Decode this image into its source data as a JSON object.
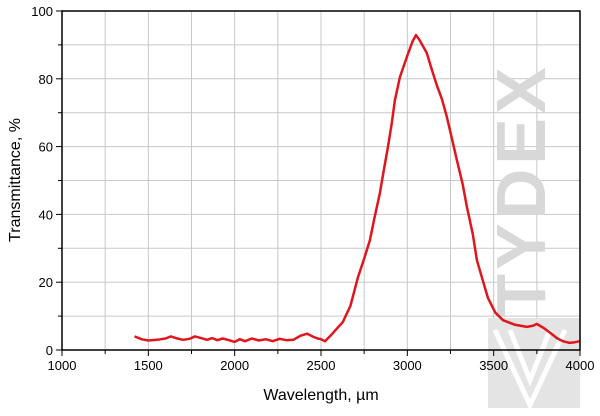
{
  "chart_data": {
    "type": "line",
    "title": "",
    "xlabel": "Wavelength, µm",
    "ylabel": "Transmittance, %",
    "xlim": [
      1000,
      4000
    ],
    "ylim": [
      0,
      100
    ],
    "xticks": [
      1000,
      1500,
      2000,
      2500,
      3000,
      3500,
      4000
    ],
    "yticks": [
      0,
      20,
      40,
      60,
      80,
      100
    ],
    "grid": true,
    "watermark": "TYDEX",
    "line_color": "#e0161e",
    "series": [
      {
        "x": [
          1420,
          1460,
          1500,
          1550,
          1600,
          1630,
          1660,
          1700,
          1740,
          1770,
          1800,
          1840,
          1870,
          1900,
          1930,
          1960,
          2000,
          2030,
          2060,
          2100,
          2140,
          2180,
          2220,
          2260,
          2300,
          2340,
          2380,
          2420,
          2450,
          2480,
          2500,
          2523,
          2560,
          2627,
          2670,
          2714,
          2750,
          2783,
          2810,
          2841,
          2860,
          2888,
          2910,
          2928,
          2957,
          2997,
          3030,
          3050,
          3070,
          3113,
          3140,
          3170,
          3200,
          3229,
          3260,
          3287,
          3320,
          3345,
          3380,
          3403,
          3440,
          3467,
          3510,
          3554,
          3620,
          3693,
          3730,
          3750,
          3790,
          3830,
          3866,
          3900,
          3940,
          3970,
          4000
        ],
        "y": [
          4.0,
          3.2,
          2.8,
          3.0,
          3.4,
          4.0,
          3.5,
          3.0,
          3.3,
          4.0,
          3.6,
          3.0,
          3.5,
          2.9,
          3.4,
          3.0,
          2.4,
          3.2,
          2.6,
          3.4,
          2.8,
          3.2,
          2.6,
          3.3,
          2.9,
          3.0,
          4.2,
          4.8,
          4.0,
          3.4,
          3.2,
          2.6,
          4.5,
          8.3,
          13,
          21.5,
          27,
          32.4,
          39,
          46.3,
          52,
          60,
          67,
          73.7,
          80.5,
          86.4,
          91,
          92.9,
          91.5,
          87.6,
          83,
          78.2,
          74,
          68.7,
          62,
          56,
          49,
          42.2,
          34,
          26.5,
          20,
          15.3,
          11,
          8.8,
          7.5,
          6.8,
          7.2,
          7.7,
          6.5,
          5,
          3.5,
          2.6,
          2.1,
          2.3,
          2.6
        ]
      }
    ]
  }
}
